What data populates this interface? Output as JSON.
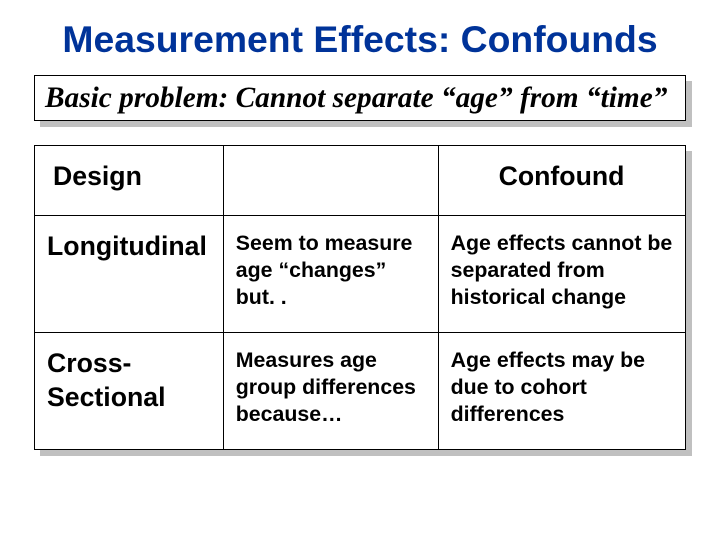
{
  "title": {
    "text": "Measurement Effects: Confounds",
    "color": "#003399",
    "fontsize_pt": 28
  },
  "subtitle": {
    "text": "Basic problem: Cannot separate “age” from “time”",
    "fontsize_pt": 22,
    "color": "#000000",
    "border_color": "#000000",
    "shadow_color": "#c0c0c0",
    "background_color": "#ffffff"
  },
  "table": {
    "border_color": "#000000",
    "shadow_color": "#c0c0c0",
    "background_color": "#ffffff",
    "header": {
      "design": "Design",
      "middle": "",
      "confound": "Confound",
      "fontsize_pt": 20
    },
    "rows": [
      {
        "design": "Longitudinal",
        "middle": "Seem to measure age “changes” but. .",
        "confound": "Age effects cannot be separated from historical change"
      },
      {
        "design": "Cross-Sectional",
        "middle": "Measures age group differences because…",
        "confound": "Age effects may  be due to cohort differences"
      }
    ],
    "design_fontsize_pt": 20,
    "cell_fontsize_pt": 16,
    "text_color": "#000000"
  }
}
